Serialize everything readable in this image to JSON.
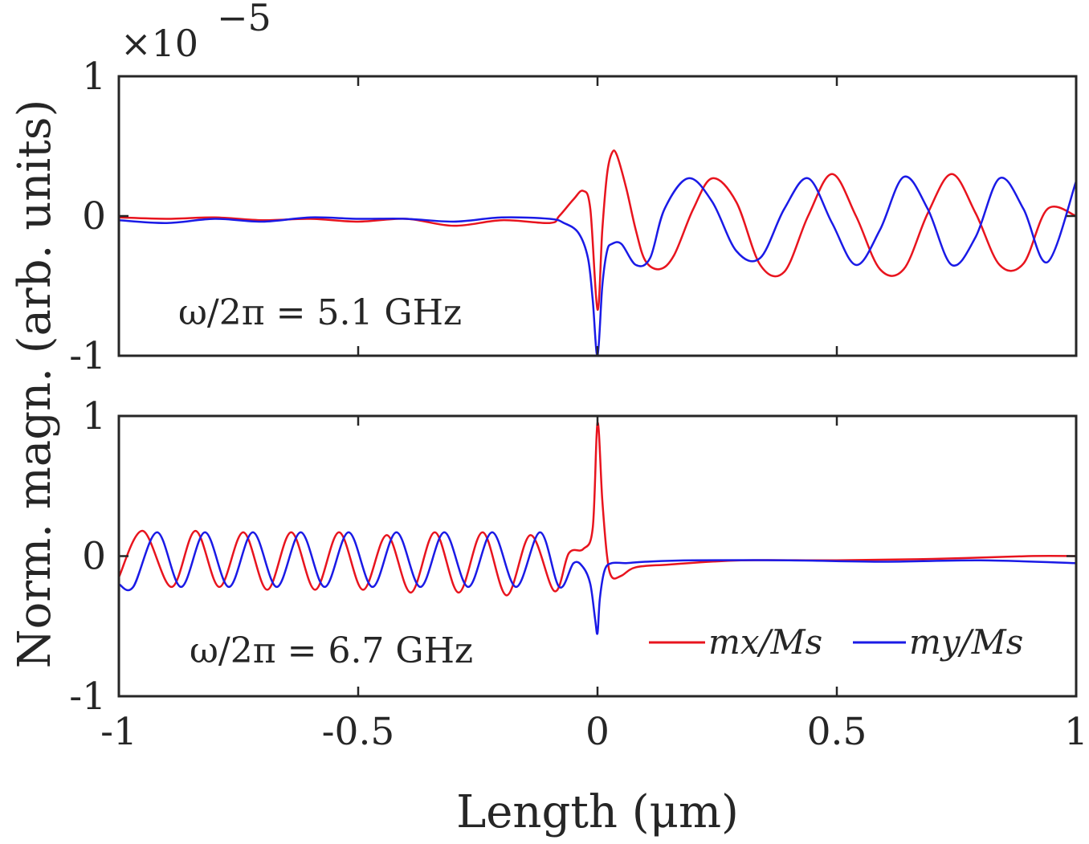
{
  "figure": {
    "ylabel": "Norm. magn. (arb. units)",
    "xlabel": "Length (μm)",
    "top_exponent": {
      "base": "×10",
      "exponent": "−5"
    }
  },
  "colors": {
    "mx": "#e8141e",
    "my": "#1a1ae6",
    "axis": "#262626"
  },
  "legend": {
    "mx": "mx/Ms",
    "my": "my/Ms",
    "location": "bottom-right of lower panel"
  },
  "chart_data": [
    {
      "type": "line",
      "panel": "top",
      "annotation": "ω/2π = 5.1 GHz",
      "xlim": [
        -1,
        1
      ],
      "ylim": [
        -1,
        1
      ],
      "y_scale_note": "×10^−5",
      "xticks": [
        -1,
        -0.5,
        0,
        0.5,
        1
      ],
      "yticks": [
        -1,
        0,
        1
      ],
      "ytick_labels": [
        "-1",
        "0",
        "1"
      ],
      "series": [
        {
          "name": "mx/Ms",
          "x": [
            -1.0,
            -0.9,
            -0.8,
            -0.7,
            -0.6,
            -0.5,
            -0.4,
            -0.3,
            -0.2,
            -0.1,
            -0.08,
            -0.05,
            -0.03,
            -0.015,
            0.0,
            0.01,
            0.02,
            0.03,
            0.04,
            0.06,
            0.08,
            0.1,
            0.13,
            0.16,
            0.2,
            0.24,
            0.29,
            0.34,
            0.39,
            0.44,
            0.49,
            0.54,
            0.59,
            0.64,
            0.69,
            0.74,
            0.79,
            0.84,
            0.89,
            0.94,
            1.0
          ],
          "y": [
            -0.01,
            -0.02,
            -0.01,
            -0.03,
            -0.02,
            -0.04,
            -0.02,
            -0.07,
            -0.03,
            -0.05,
            0.0,
            0.12,
            0.18,
            0.05,
            -0.67,
            -0.1,
            0.3,
            0.45,
            0.44,
            0.2,
            -0.1,
            -0.32,
            -0.38,
            -0.28,
            0.05,
            0.27,
            0.1,
            -0.35,
            -0.4,
            0.0,
            0.3,
            0.0,
            -0.38,
            -0.38,
            0.02,
            0.3,
            0.02,
            -0.35,
            -0.34,
            0.05,
            0.0
          ]
        },
        {
          "name": "my/Ms",
          "x": [
            -1.0,
            -0.9,
            -0.8,
            -0.7,
            -0.6,
            -0.5,
            -0.4,
            -0.3,
            -0.2,
            -0.1,
            -0.07,
            -0.04,
            -0.02,
            -0.01,
            0.0,
            0.01,
            0.02,
            0.03,
            0.05,
            0.08,
            0.11,
            0.14,
            0.19,
            0.24,
            0.29,
            0.34,
            0.39,
            0.44,
            0.49,
            0.54,
            0.59,
            0.64,
            0.69,
            0.74,
            0.79,
            0.84,
            0.89,
            0.94,
            1.0
          ],
          "y": [
            -0.03,
            -0.05,
            -0.02,
            -0.04,
            -0.01,
            -0.02,
            -0.02,
            -0.04,
            -0.01,
            -0.02,
            -0.05,
            -0.12,
            -0.3,
            -0.6,
            -1.0,
            -0.5,
            -0.25,
            -0.2,
            -0.2,
            -0.35,
            -0.3,
            0.05,
            0.27,
            0.1,
            -0.25,
            -0.3,
            0.05,
            0.27,
            -0.05,
            -0.35,
            -0.1,
            0.28,
            0.05,
            -0.35,
            -0.15,
            0.27,
            0.05,
            -0.33,
            0.25
          ]
        }
      ]
    },
    {
      "type": "line",
      "panel": "bottom",
      "annotation": "ω/2π = 6.7 GHz",
      "xlim": [
        -1,
        1
      ],
      "ylim": [
        -1,
        1
      ],
      "xticks": [
        -1,
        -0.5,
        0,
        0.5,
        1
      ],
      "xtick_labels": [
        "-1",
        "-0.5",
        "0",
        "0.5",
        "1"
      ],
      "yticks": [
        -1,
        0,
        1
      ],
      "ytick_labels": [
        "-1",
        "0",
        "1"
      ],
      "series": [
        {
          "name": "mx/Ms",
          "x": [
            -1.0,
            -0.95,
            -0.89,
            -0.84,
            -0.79,
            -0.74,
            -0.69,
            -0.64,
            -0.59,
            -0.54,
            -0.49,
            -0.44,
            -0.39,
            -0.34,
            -0.29,
            -0.24,
            -0.19,
            -0.14,
            -0.09,
            -0.06,
            -0.03,
            -0.01,
            0.0,
            0.01,
            0.02,
            0.03,
            0.05,
            0.08,
            0.15,
            0.3,
            0.5,
            0.7,
            0.9,
            1.0
          ],
          "y": [
            -0.15,
            0.18,
            -0.22,
            0.18,
            -0.22,
            0.17,
            -0.24,
            0.17,
            -0.24,
            0.17,
            -0.24,
            0.15,
            -0.26,
            0.17,
            -0.26,
            0.17,
            -0.28,
            0.15,
            -0.25,
            0.02,
            0.05,
            0.2,
            0.95,
            0.4,
            0.0,
            -0.15,
            -0.14,
            -0.08,
            -0.06,
            -0.03,
            -0.03,
            -0.02,
            0.0,
            0.0
          ]
        },
        {
          "name": "my/Ms",
          "x": [
            -1.0,
            -0.97,
            -0.92,
            -0.87,
            -0.82,
            -0.77,
            -0.72,
            -0.67,
            -0.62,
            -0.57,
            -0.52,
            -0.47,
            -0.42,
            -0.37,
            -0.32,
            -0.27,
            -0.22,
            -0.17,
            -0.12,
            -0.08,
            -0.05,
            -0.03,
            -0.015,
            -0.005,
            0.0,
            0.005,
            0.015,
            0.03,
            0.06,
            0.1,
            0.2,
            0.4,
            0.6,
            0.8,
            1.0
          ],
          "y": [
            -0.2,
            -0.22,
            0.17,
            -0.22,
            0.17,
            -0.22,
            0.17,
            -0.22,
            0.17,
            -0.22,
            0.17,
            -0.22,
            0.17,
            -0.22,
            0.17,
            -0.22,
            0.17,
            -0.22,
            0.17,
            -0.22,
            -0.05,
            -0.08,
            -0.2,
            -0.45,
            -0.55,
            -0.3,
            -0.1,
            -0.05,
            -0.05,
            -0.04,
            -0.03,
            -0.03,
            -0.04,
            -0.03,
            -0.05
          ]
        }
      ]
    }
  ]
}
